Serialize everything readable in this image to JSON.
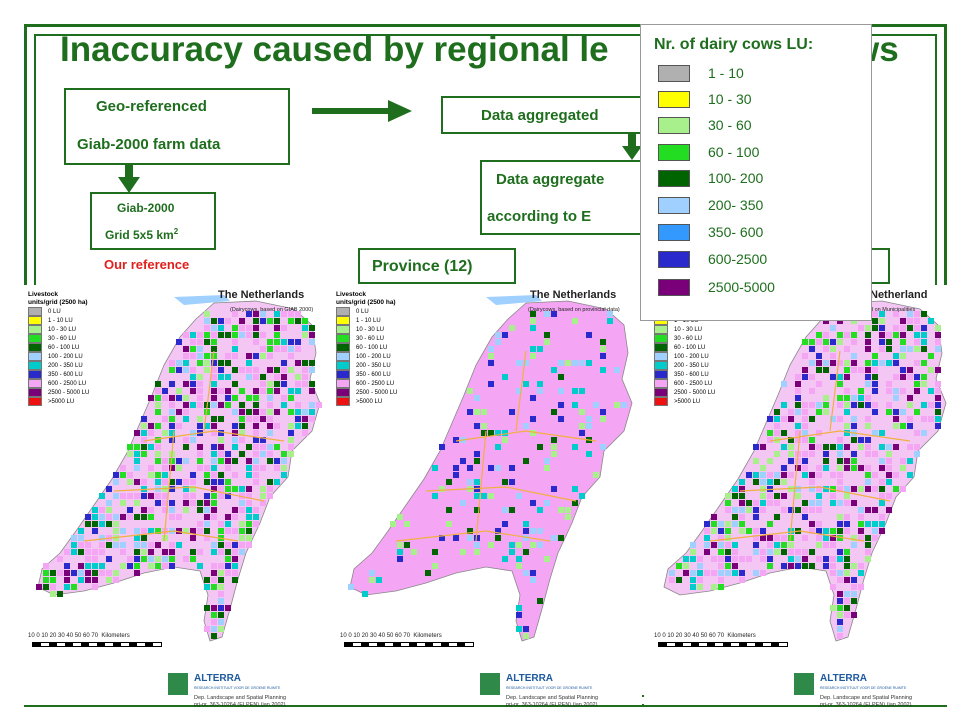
{
  "slide": {
    "title": "Inaccuracy caused by regional le",
    "title_tail": "ws",
    "geo_box": {
      "line1": "Geo-referenced",
      "line2": "Giab-2000 farm data"
    },
    "giab_box": {
      "line1": "Giab-2000",
      "line2": "Grid 5x5 km",
      "sup": "2"
    },
    "reference_label": "Our reference",
    "aggregated_box": "Data aggregated",
    "aggregated_box2": {
      "line1": "Data aggregate",
      "line2": "according to E"
    },
    "province_box": "Province (12)",
    "hidden_box_tail": ")"
  },
  "legend": {
    "title": "Nr. of dairy cows LU:",
    "items": [
      {
        "label": "1   - 10",
        "color": "#b0b0b0"
      },
      {
        "label": "10 - 30",
        "color": "#ffff00"
      },
      {
        "label": "30 - 60",
        "color": "#a8f08c"
      },
      {
        "label": "60 - 100",
        "color": "#22dd22"
      },
      {
        "label": "100- 200",
        "color": "#006400"
      },
      {
        "label": "200- 350",
        "color": "#9fd0ff"
      },
      {
        "label": "350- 600",
        "color": "#3399ff"
      },
      {
        "label": "600-2500",
        "color": "#2a2acc"
      },
      {
        "label": "2500-5000",
        "color": "#f4a6cf"
      },
      {
        "label": "",
        "color": "#7a007a"
      }
    ],
    "label_600": "600-2500",
    "label_2500": "2500-5000"
  },
  "maps": [
    {
      "title": "The Netherlands",
      "subtitle": "(Dairycows, based on GIAB 2000)",
      "style": "grid"
    },
    {
      "title": "The Netherlands",
      "subtitle": "(Dairycows, based on provincial data)",
      "style": "province"
    },
    {
      "title": "Netherland",
      "subtitle": "d on Municipalities",
      "style": "municipal"
    }
  ],
  "mini_legend": {
    "header1": "Livestock",
    "header2": "units/grid (2500 ha)",
    "items": [
      {
        "label": "0 LU",
        "color": "#b0b0b0"
      },
      {
        "label": "1 - 10 LU",
        "color": "#ffff00"
      },
      {
        "label": "10 - 30 LU",
        "color": "#a8f08c"
      },
      {
        "label": "30 - 60 LU",
        "color": "#22dd22"
      },
      {
        "label": "60 - 100 LU",
        "color": "#006400"
      },
      {
        "label": "100 - 200 LU",
        "color": "#9fd0ff"
      },
      {
        "label": "200 - 350 LU",
        "color": "#00cccc"
      },
      {
        "label": "350 - 600 LU",
        "color": "#2a2acc"
      },
      {
        "label": "600 - 2500 LU",
        "color": "#f4a6f4"
      },
      {
        "label": "2500 - 5000 LU",
        "color": "#7a007a"
      },
      {
        "label": ">5000 LU",
        "color": "#ee1111"
      }
    ]
  },
  "scale": {
    "ticks": "10   0   10  20  30  40  50  60  70",
    "unit": "Kilometers"
  },
  "logo": {
    "name": "ALTERRA",
    "sub": "RESEARCH INSTITUUT VOOR DE GROENE RUIMTE",
    "dep1": "Dep. Landscape and Spatial Planning",
    "dep2": "prj-nr. 363-10264 (ELPEN)    (jan 2002)"
  },
  "colors": {
    "accent": "#1e6e1e",
    "reference_red": "#e0201c",
    "province_outline": "#f0b040"
  }
}
